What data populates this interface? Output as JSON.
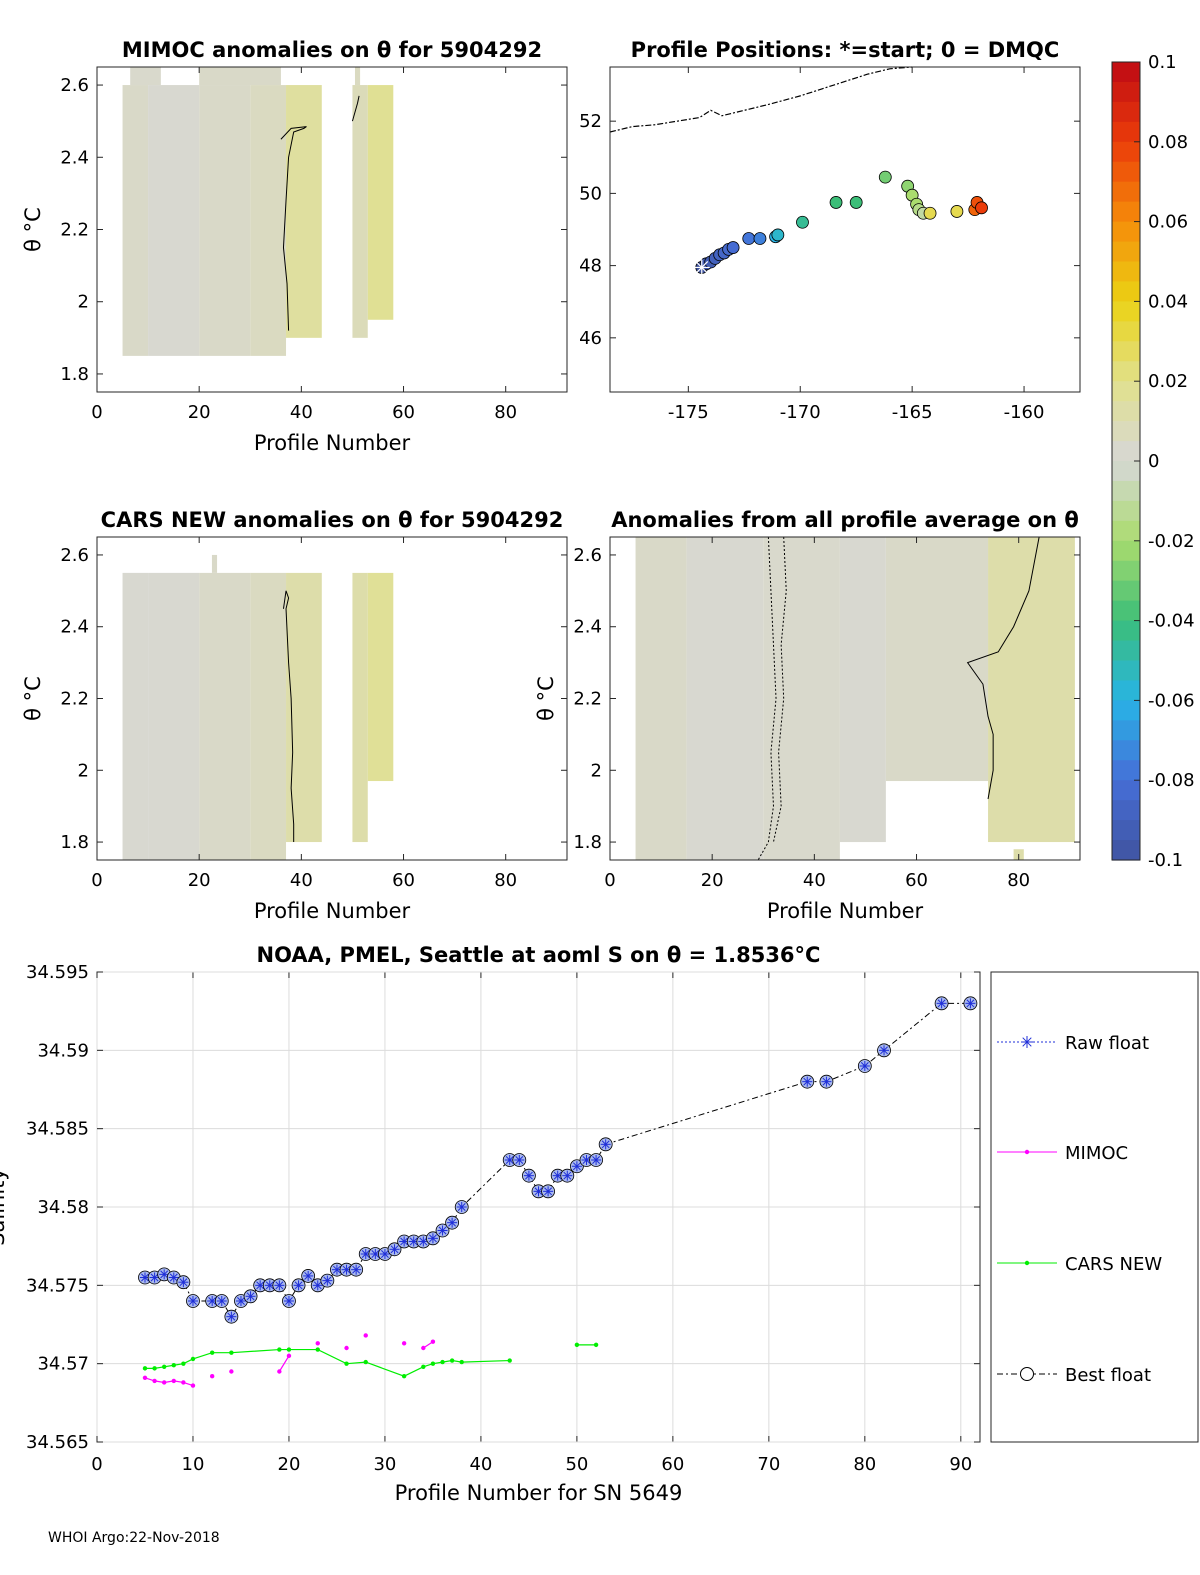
{
  "footer": "WHOI Argo:22-Nov-2018",
  "colorbar": {
    "ticks": [
      "0.1",
      "0.08",
      "0.06",
      "0.04",
      "0.02",
      "0",
      "-0.02",
      "-0.04",
      "-0.06",
      "-0.08",
      "-0.1"
    ],
    "min": -0.1,
    "max": 0.1
  },
  "chart_data": [
    {
      "id": "mimoc",
      "type": "heatmap",
      "title": "MIMOC anomalies on θ  for 5904292",
      "xlabel": "Profile Number",
      "ylabel": "θ °C",
      "xlim": [
        0,
        92
      ],
      "ylim": [
        1.75,
        2.65
      ],
      "xticks": [
        "0",
        "20",
        "40",
        "60",
        "80"
      ],
      "yticks": [
        "1.8",
        "2",
        "2.2",
        "2.4",
        "2.6"
      ],
      "cells": [
        {
          "x0": 5,
          "x1": 10,
          "y0": 1.85,
          "y1": 2.6,
          "v": 0.004
        },
        {
          "x0": 10,
          "x1": 20,
          "y0": 1.85,
          "y1": 2.6,
          "v": 0.002
        },
        {
          "x0": 20,
          "x1": 30,
          "y0": 1.85,
          "y1": 2.6,
          "v": 0.004
        },
        {
          "x0": 30,
          "x1": 37,
          "y0": 1.85,
          "y1": 2.6,
          "v": 0.006
        },
        {
          "x0": 37,
          "x1": 44,
          "y0": 1.9,
          "y1": 2.6,
          "v": 0.015
        },
        {
          "x0": 50,
          "x1": 53,
          "y0": 1.9,
          "y1": 2.6,
          "v": 0.008
        },
        {
          "x0": 53,
          "x1": 58,
          "y0": 1.95,
          "y1": 2.6,
          "v": 0.018
        }
      ]
    },
    {
      "id": "positions",
      "type": "scatter",
      "title": "Profile Positions: *=start; 0 = DMQC",
      "xlim": [
        -178.5,
        -157.5
      ],
      "ylim": [
        44.5,
        53.5
      ],
      "xticks": [
        "-175",
        "-170",
        "-165",
        "-160"
      ],
      "yticks": [
        "46",
        "48",
        "50",
        "52"
      ],
      "points": [
        {
          "lon": -174.4,
          "lat": 47.95,
          "v": -0.1
        },
        {
          "lon": -174.2,
          "lat": 48.05,
          "v": -0.095
        },
        {
          "lon": -174.0,
          "lat": 48.1,
          "v": -0.093
        },
        {
          "lon": -173.8,
          "lat": 48.2,
          "v": -0.09
        },
        {
          "lon": -173.6,
          "lat": 48.3,
          "v": -0.088
        },
        {
          "lon": -173.4,
          "lat": 48.35,
          "v": -0.086
        },
        {
          "lon": -173.2,
          "lat": 48.45,
          "v": -0.084
        },
        {
          "lon": -173.0,
          "lat": 48.5,
          "v": -0.082
        },
        {
          "lon": -172.3,
          "lat": 48.75,
          "v": -0.078
        },
        {
          "lon": -171.8,
          "lat": 48.75,
          "v": -0.075
        },
        {
          "lon": -171.1,
          "lat": 48.8,
          "v": -0.06
        },
        {
          "lon": -171.0,
          "lat": 48.85,
          "v": -0.055
        },
        {
          "lon": -169.9,
          "lat": 49.2,
          "v": -0.045
        },
        {
          "lon": -168.4,
          "lat": 49.75,
          "v": -0.04
        },
        {
          "lon": -167.5,
          "lat": 49.75,
          "v": -0.04
        },
        {
          "lon": -166.2,
          "lat": 50.45,
          "v": -0.03
        },
        {
          "lon": -165.2,
          "lat": 50.2,
          "v": -0.025
        },
        {
          "lon": -165.0,
          "lat": 49.95,
          "v": -0.02
        },
        {
          "lon": -164.8,
          "lat": 49.7,
          "v": -0.02
        },
        {
          "lon": -164.7,
          "lat": 49.55,
          "v": -0.015
        },
        {
          "lon": -164.5,
          "lat": 49.45,
          "v": -0.01
        },
        {
          "lon": -164.2,
          "lat": 49.45,
          "v": 0.03
        },
        {
          "lon": -163.0,
          "lat": 49.5,
          "v": 0.03
        },
        {
          "lon": -162.2,
          "lat": 49.55,
          "v": 0.07
        },
        {
          "lon": -162.1,
          "lat": 49.75,
          "v": 0.075
        },
        {
          "lon": -161.9,
          "lat": 49.6,
          "v": 0.08
        }
      ]
    },
    {
      "id": "cars",
      "type": "heatmap",
      "title": "CARS NEW anomalies on θ for 5904292",
      "xlabel": "Profile Number",
      "ylabel": "θ °C",
      "xlim": [
        0,
        92
      ],
      "ylim": [
        1.75,
        2.65
      ],
      "xticks": [
        "0",
        "20",
        "40",
        "60",
        "80"
      ],
      "yticks": [
        "1.8",
        "2",
        "2.2",
        "2.4",
        "2.6"
      ],
      "cells": [
        {
          "x0": 5,
          "x1": 10,
          "y0": 1.75,
          "y1": 2.55,
          "v": 0.002
        },
        {
          "x0": 10,
          "x1": 20,
          "y0": 1.75,
          "y1": 2.55,
          "v": 0.002
        },
        {
          "x0": 20,
          "x1": 30,
          "y0": 1.75,
          "y1": 2.55,
          "v": 0.004
        },
        {
          "x0": 30,
          "x1": 37,
          "y0": 1.75,
          "y1": 2.55,
          "v": 0.006
        },
        {
          "x0": 37,
          "x1": 44,
          "y0": 1.8,
          "y1": 2.55,
          "v": 0.012
        },
        {
          "x0": 50,
          "x1": 53,
          "y0": 1.8,
          "y1": 2.55,
          "v": 0.012
        },
        {
          "x0": 53,
          "x1": 58,
          "y0": 1.97,
          "y1": 2.55,
          "v": 0.017
        }
      ]
    },
    {
      "id": "allavg",
      "type": "heatmap",
      "title": "Anomalies from all profile average on θ",
      "xlabel": "Profile Number",
      "ylabel": "θ °C",
      "xlim": [
        0,
        92
      ],
      "ylim": [
        1.75,
        2.65
      ],
      "xticks": [
        "0",
        "20",
        "40",
        "60",
        "80"
      ],
      "yticks": [
        "1.8",
        "2",
        "2.2",
        "2.4",
        "2.6"
      ],
      "cells": [
        {
          "x0": 5,
          "x1": 15,
          "y0": 1.75,
          "y1": 2.65,
          "v": 0.004
        },
        {
          "x0": 15,
          "x1": 30,
          "y0": 1.75,
          "y1": 2.65,
          "v": 0.002
        },
        {
          "x0": 30,
          "x1": 45,
          "y0": 1.75,
          "y1": 2.65,
          "v": 0.003
        },
        {
          "x0": 45,
          "x1": 54,
          "y0": 1.8,
          "y1": 2.65,
          "v": 0.002
        },
        {
          "x0": 54,
          "x1": 74,
          "y0": 1.97,
          "y1": 2.65,
          "v": 0.004
        },
        {
          "x0": 74,
          "x1": 91,
          "y0": 1.8,
          "y1": 2.65,
          "v": 0.012
        }
      ]
    },
    {
      "id": "salinity",
      "type": "line",
      "title": "NOAA, PMEL, Seattle at aoml S on θ = 1.8536°C",
      "xlabel": "Profile Number for SN 5649",
      "ylabel": "Salinity",
      "xlim": [
        0,
        92
      ],
      "ylim": [
        34.565,
        34.595
      ],
      "xticks": [
        "0",
        "10",
        "20",
        "30",
        "40",
        "50",
        "60",
        "70",
        "80",
        "90"
      ],
      "yticks": [
        "34.565",
        "34.57",
        "34.575",
        "34.58",
        "34.585",
        "34.59",
        "34.595"
      ],
      "legend": [
        "Raw float",
        "MIMOC",
        "CARS NEW",
        "Best float"
      ],
      "series": [
        {
          "name": "Best float",
          "x": [
            5,
            6,
            7,
            8,
            9,
            10,
            12,
            13,
            14,
            15,
            16,
            17,
            18,
            19,
            20,
            21,
            22,
            23,
            24,
            25,
            26,
            27,
            28,
            29,
            30,
            31,
            32,
            33,
            34,
            35,
            36,
            37,
            38,
            43,
            44,
            45,
            46,
            47,
            48,
            49,
            50,
            51,
            52,
            53,
            74,
            76,
            80,
            82,
            88,
            91
          ],
          "y": [
            34.5755,
            34.5755,
            34.5757,
            34.5755,
            34.5752,
            34.574,
            34.574,
            34.574,
            34.573,
            34.574,
            34.5743,
            34.575,
            34.575,
            34.575,
            34.574,
            34.575,
            34.5756,
            34.575,
            34.5753,
            34.576,
            34.576,
            34.576,
            34.577,
            34.577,
            34.577,
            34.5773,
            34.5778,
            34.5778,
            34.5778,
            34.578,
            34.5785,
            34.579,
            34.58,
            34.583,
            34.583,
            34.582,
            34.581,
            34.581,
            34.582,
            34.582,
            34.5826,
            34.583,
            34.583,
            34.584,
            34.588,
            34.588,
            34.589,
            34.59,
            34.593,
            34.593
          ]
        },
        {
          "name": "MIMOC",
          "x": [
            5,
            6,
            7,
            8,
            9,
            10,
            12,
            14,
            19,
            20,
            23,
            26,
            28,
            32,
            34,
            35
          ],
          "y": [
            34.5691,
            34.5689,
            34.5688,
            34.5689,
            34.5688,
            34.5686,
            34.5692,
            34.5695,
            34.5695,
            34.5705,
            34.5713,
            34.571,
            34.5718,
            34.5713,
            34.571,
            34.5714
          ]
        },
        {
          "name": "CARS NEW",
          "x": [
            5,
            6,
            7,
            8,
            9,
            10,
            12,
            14,
            19,
            20,
            23,
            26,
            28,
            32,
            34,
            35,
            36,
            37,
            38,
            43,
            50,
            52
          ],
          "y": [
            34.5697,
            34.5697,
            34.5698,
            34.5699,
            34.57,
            34.5703,
            34.5707,
            34.5707,
            34.5709,
            34.5709,
            34.5709,
            34.57,
            34.5701,
            34.5692,
            34.5698,
            34.57,
            34.5701,
            34.5702,
            34.5701,
            34.5702,
            34.5712,
            34.5712
          ]
        }
      ]
    }
  ]
}
